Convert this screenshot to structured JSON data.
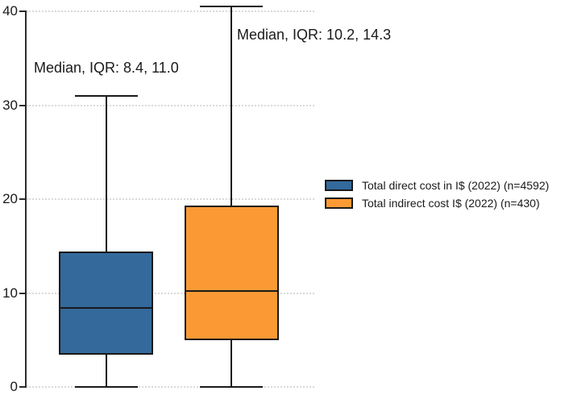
{
  "chart_data": {
    "type": "box",
    "title": "",
    "xlabel": "",
    "ylabel": "",
    "ylim": [
      0,
      40
    ],
    "yticks": [
      0,
      10,
      20,
      30,
      40
    ],
    "grid": "horizontal dotted gridlines at each y tick",
    "legend_position": "right of plot, middle height",
    "series": [
      {
        "name": "Total direct cost in I$ (2022) (n=4592)",
        "color": "#336A9B",
        "min": 0,
        "q1": 3.4,
        "median": 8.4,
        "q3": 14.4,
        "max": 31.0,
        "iqr": 11.0,
        "annotation": "Median, IQR: 8.4, 11.0"
      },
      {
        "name": "Total indirect cost I$ (2022) (n=430)",
        "color": "#FB9A35",
        "min": 0,
        "q1": 5.0,
        "median": 10.2,
        "q3": 19.3,
        "max": 40.5,
        "iqr": 14.3,
        "annotation": "Median, IQR: 10.2, 14.3"
      }
    ],
    "colors": {
      "box_outline": "#1a1a1a",
      "axis": "#2b2b2b",
      "gridline": "#d9d9d9",
      "text": "#1a1a1a",
      "background": "#ffffff"
    }
  }
}
